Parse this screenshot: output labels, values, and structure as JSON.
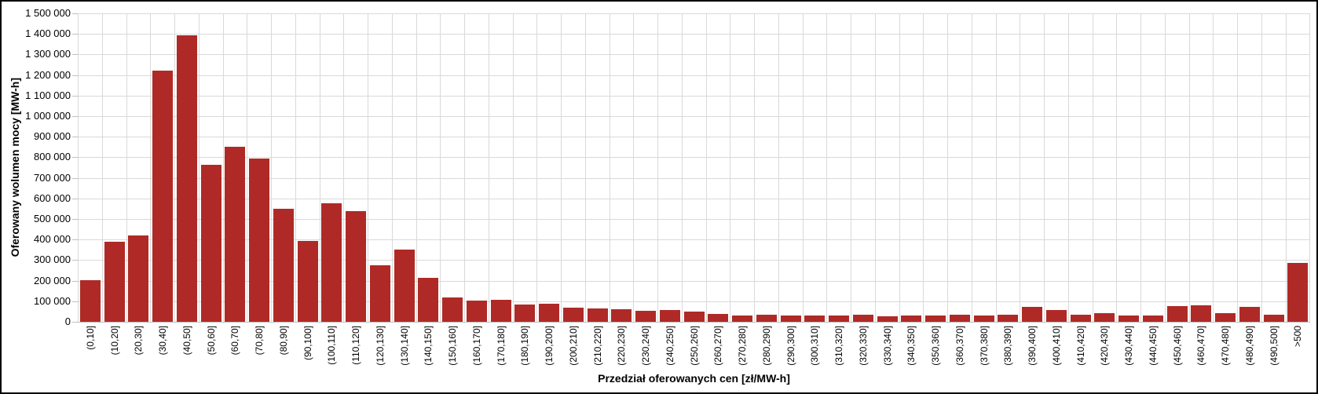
{
  "chart_data": {
    "type": "bar",
    "title": "",
    "xlabel": "Przedział oferowanych cen [zł/MW-h]",
    "ylabel": "Oferowany wolumen mocy [MW-h]",
    "ylim": [
      0,
      1500000
    ],
    "ytick_step": 100000,
    "ytick_labels": [
      "0",
      "100 000",
      "200 000",
      "300 000",
      "400 000",
      "500 000",
      "600 000",
      "700 000",
      "800 000",
      "900 000",
      "1 000 000",
      "1 100 000",
      "1 200 000",
      "1 300 000",
      "1 400 000",
      "1 500 000"
    ],
    "grid": true,
    "legend": "none",
    "bar_color": "#af2a26",
    "gridline_color": "#d9d9d9",
    "axis_line_color": "#bfbfbf",
    "categories": [
      "(0,10]",
      "(10,20]",
      "(20,30]",
      "(30,40]",
      "(40,50]",
      "(50,60]",
      "(60,70]",
      "(70,80]",
      "(80,90]",
      "(90,100]",
      "(100,110]",
      "(110,120]",
      "(120,130]",
      "(130,140]",
      "(140,150]",
      "(150,160]",
      "(160,170]",
      "(170,180]",
      "(180,190]",
      "(190,200]",
      "(200,210]",
      "(210,220]",
      "(220,230]",
      "(230,240]",
      "(240,250]",
      "(250,260]",
      "(260,270]",
      "(270,280]",
      "(280,290]",
      "(290,300]",
      "(300,310]",
      "(310,320]",
      "(320,330]",
      "(330,340]",
      "(340,350]",
      "(350,360]",
      "(360,370]",
      "(370,380]",
      "(380,390]",
      "(390,400]",
      "(400,410]",
      "(410,420]",
      "(420,430]",
      "(430,440]",
      "(440,450]",
      "(450,460]",
      "(460,470]",
      "(470,480]",
      "(480,490]",
      "(490,500]",
      ">500"
    ],
    "values": [
      203000,
      390000,
      420000,
      1220000,
      1395000,
      762000,
      850000,
      795000,
      550000,
      395000,
      575000,
      537000,
      276000,
      352000,
      215000,
      119000,
      103000,
      107000,
      85000,
      86000,
      70000,
      66000,
      60000,
      55000,
      56000,
      49000,
      37000,
      32000,
      34000,
      29000,
      29000,
      30000,
      35000,
      25000,
      32000,
      30000,
      33000,
      30000,
      35000,
      72000,
      57000,
      33000,
      43000,
      30000,
      30000,
      75000,
      79000,
      42000,
      71000,
      33000,
      288000
    ]
  }
}
